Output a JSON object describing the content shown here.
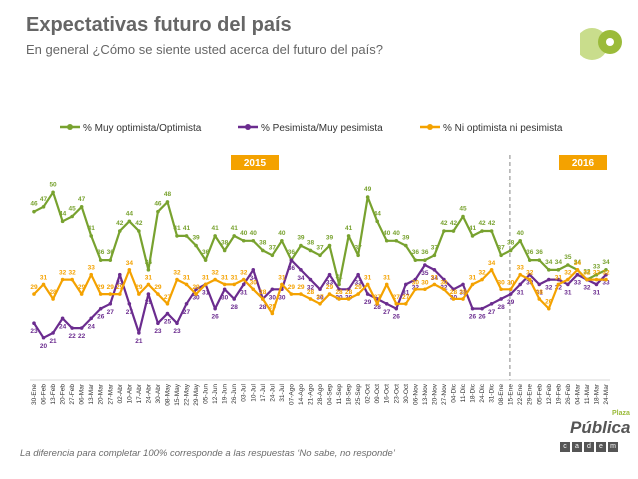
{
  "page": {
    "title": "Expectativas futuro del país",
    "subtitle": "En general ¿Cómo se siente usted acerca del futuro del país?",
    "footnote": "La diferencia para completar 100% corresponde a las respuestas ‘No sabe, no responde’",
    "logo": {
      "brand": "Pública",
      "brand_top": "Plaza",
      "boxes": [
        "c",
        "a",
        "d",
        "e",
        "m"
      ]
    }
  },
  "chart_data": {
    "type": "line",
    "title": "Expectativas futuro del país",
    "subtitle": "En general ¿Cómo se siente usted acerca del futuro del país?",
    "xlabel": "",
    "ylabel": "",
    "ylim": [
      15,
      55
    ],
    "legend_position": "top",
    "period_labels": [
      {
        "label": "2015",
        "color": "#f4a200"
      },
      {
        "label": "2016",
        "color": "#f4a200"
      }
    ],
    "period_divider_after_index": 50,
    "categories": [
      "30-Ene",
      "06-Feb",
      "13-Feb",
      "20-Feb",
      "27-Feb",
      "06-Mar",
      "13-Mar",
      "20-Mar",
      "27-Mar",
      "02-Abr",
      "10-Abr",
      "17-Abr",
      "24-Abr",
      "30-Abr",
      "08-May",
      "15-May",
      "22-May",
      "29-May",
      "05-Jun",
      "12-Jun",
      "19-Jun",
      "26-Jun",
      "03-Jul",
      "10-Jul",
      "17-Jul",
      "24-Jul",
      "31-Jul",
      "07-Ago",
      "14-Ago",
      "21-Ago",
      "28-Ago",
      "04-Sep",
      "11-Sep",
      "18-Sep",
      "25-Sep",
      "02-Oct",
      "09-Oct",
      "16-Oct",
      "23-Oct",
      "30-Oct",
      "06-Nov",
      "13-Nov",
      "20-Nov",
      "27-Nov",
      "04-Dic",
      "11-Dic",
      "18-Dic",
      "24-Dic",
      "31-Dic",
      "08-Ene",
      "15-Ene",
      "22-Ene",
      "29-Ene",
      "05-Feb",
      "12-Feb",
      "19-Feb",
      "26-Feb",
      "04-Mar",
      "11-Mar",
      "18-Mar",
      "24-Mar"
    ],
    "series": [
      {
        "name": "% Muy optimista/Optimista",
        "color": "#78a22f",
        "values": [
          46,
          47,
          50,
          44,
          45,
          47,
          41,
          36,
          36,
          42,
          44,
          42,
          34,
          46,
          48,
          41,
          41,
          39,
          36,
          41,
          38,
          41,
          40,
          40,
          38,
          37,
          40,
          36,
          39,
          38,
          37,
          39,
          31,
          41,
          37,
          49,
          44,
          40,
          40,
          39,
          36,
          36,
          37,
          42,
          42,
          45,
          41,
          42,
          42,
          37,
          38,
          40,
          36,
          36,
          34,
          34,
          35,
          34,
          32,
          33,
          34
        ]
      },
      {
        "name": "% Pesimista/Muy pesimista",
        "color": "#6b2c8f",
        "values": [
          23,
          20,
          21,
          24,
          22,
          22,
          24,
          26,
          27,
          33,
          27,
          21,
          29,
          23,
          25,
          23,
          27,
          30,
          31,
          26,
          30,
          28,
          31,
          34,
          28,
          30,
          30,
          36,
          34,
          32,
          30,
          33,
          30,
          30,
          33,
          29,
          28,
          27,
          26,
          31,
          32,
          35,
          34,
          32,
          30,
          31,
          26,
          26,
          27,
          28,
          29,
          31,
          33,
          31,
          32,
          32,
          31,
          33,
          32,
          31,
          33
        ]
      },
      {
        "name": "% Ni optimista ni pesimista",
        "color": "#f4a200",
        "values": [
          29,
          31,
          28,
          32,
          32,
          29,
          33,
          29,
          29,
          29,
          34,
          29,
          31,
          29,
          27,
          32,
          31,
          29,
          31,
          32,
          31,
          31,
          32,
          30,
          28,
          25,
          31,
          29,
          29,
          28,
          27,
          29,
          28,
          28,
          29,
          31,
          27,
          31,
          27,
          27,
          30,
          30,
          31,
          30,
          28,
          28,
          31,
          32,
          34,
          30,
          30,
          33,
          32,
          28,
          26,
          31,
          32,
          34,
          32,
          32,
          32
        ]
      }
    ]
  }
}
